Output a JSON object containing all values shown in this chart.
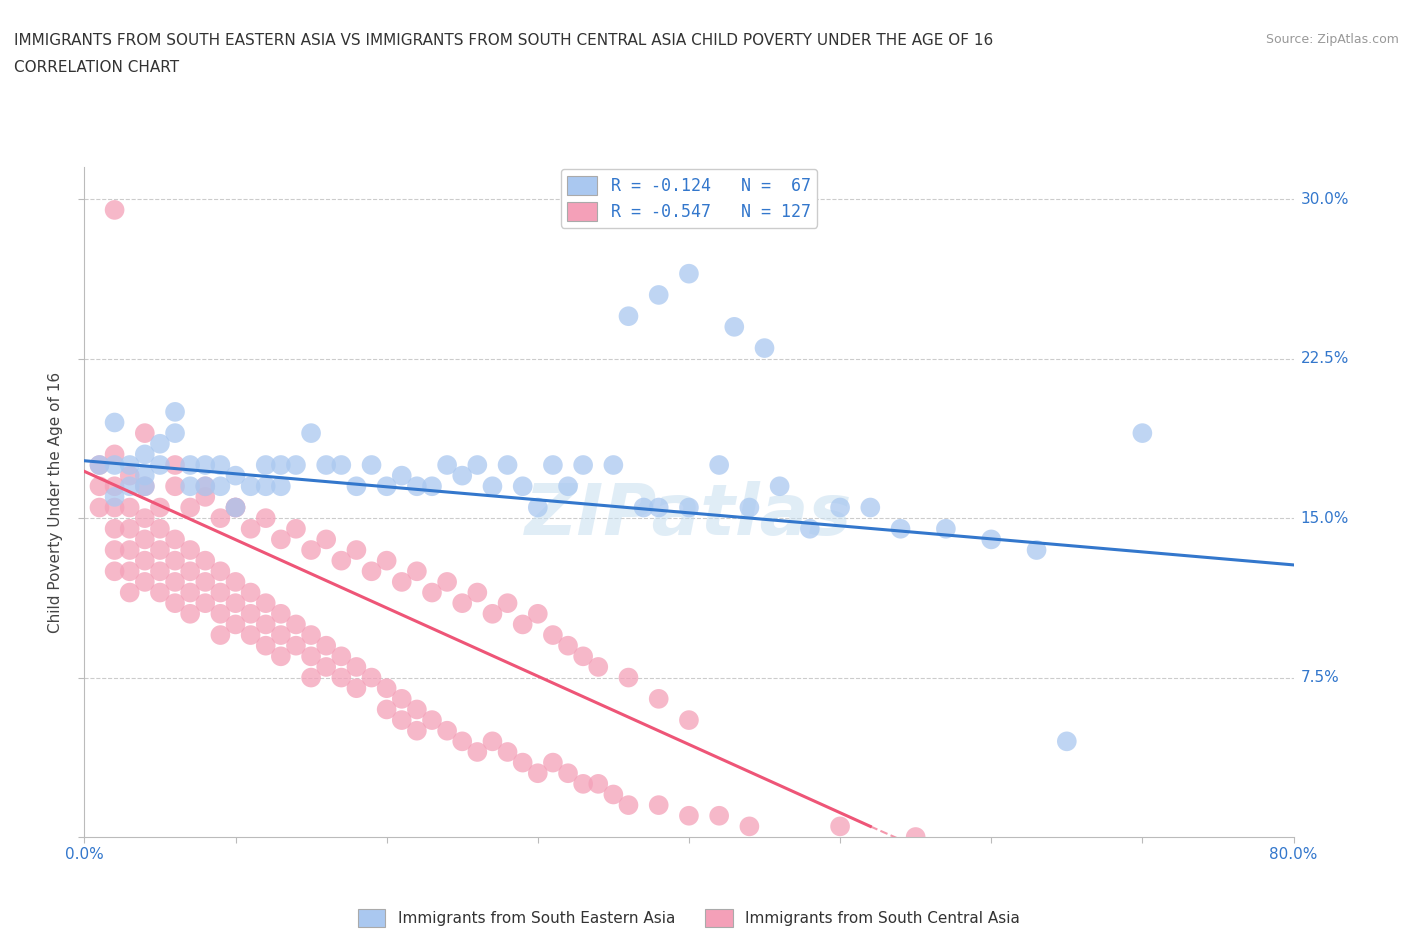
{
  "title_line1": "IMMIGRANTS FROM SOUTH EASTERN ASIA VS IMMIGRANTS FROM SOUTH CENTRAL ASIA CHILD POVERTY UNDER THE AGE OF 16",
  "title_line2": "CORRELATION CHART",
  "source_text": "Source: ZipAtlas.com",
  "ylabel": "Child Poverty Under the Age of 16",
  "xmin": 0.0,
  "xmax": 0.8,
  "ymin": 0.0,
  "ymax": 0.315,
  "yticks": [
    0.0,
    0.075,
    0.15,
    0.225,
    0.3
  ],
  "ytick_labels": [
    "",
    "7.5%",
    "15.0%",
    "22.5%",
    "30.0%"
  ],
  "r_blue": -0.124,
  "n_blue": 67,
  "r_pink": -0.547,
  "n_pink": 127,
  "blue_color": "#aac8f0",
  "pink_color": "#f4a0b8",
  "blue_line_color": "#3377cc",
  "pink_line_color": "#ee5577",
  "watermark": "ZIPatlas",
  "legend_label_blue": "Immigrants from South Eastern Asia",
  "legend_label_pink": "Immigrants from South Central Asia",
  "blue_scatter_x": [
    0.01,
    0.02,
    0.02,
    0.02,
    0.03,
    0.03,
    0.04,
    0.04,
    0.04,
    0.05,
    0.05,
    0.06,
    0.06,
    0.07,
    0.07,
    0.08,
    0.08,
    0.09,
    0.09,
    0.1,
    0.1,
    0.11,
    0.12,
    0.12,
    0.13,
    0.13,
    0.14,
    0.15,
    0.16,
    0.17,
    0.18,
    0.19,
    0.2,
    0.21,
    0.22,
    0.23,
    0.24,
    0.25,
    0.26,
    0.27,
    0.28,
    0.29,
    0.3,
    0.31,
    0.32,
    0.33,
    0.35,
    0.37,
    0.38,
    0.4,
    0.42,
    0.44,
    0.46,
    0.48,
    0.5,
    0.52,
    0.54,
    0.57,
    0.6,
    0.63,
    0.36,
    0.38,
    0.4,
    0.43,
    0.45,
    0.7,
    0.65
  ],
  "blue_scatter_y": [
    0.175,
    0.195,
    0.175,
    0.16,
    0.175,
    0.165,
    0.18,
    0.17,
    0.165,
    0.185,
    0.175,
    0.2,
    0.19,
    0.175,
    0.165,
    0.175,
    0.165,
    0.175,
    0.165,
    0.17,
    0.155,
    0.165,
    0.175,
    0.165,
    0.175,
    0.165,
    0.175,
    0.19,
    0.175,
    0.175,
    0.165,
    0.175,
    0.165,
    0.17,
    0.165,
    0.165,
    0.175,
    0.17,
    0.175,
    0.165,
    0.175,
    0.165,
    0.155,
    0.175,
    0.165,
    0.175,
    0.175,
    0.155,
    0.155,
    0.155,
    0.175,
    0.155,
    0.165,
    0.145,
    0.155,
    0.155,
    0.145,
    0.145,
    0.14,
    0.135,
    0.245,
    0.255,
    0.265,
    0.24,
    0.23,
    0.19,
    0.045
  ],
  "pink_scatter_x": [
    0.01,
    0.01,
    0.01,
    0.02,
    0.02,
    0.02,
    0.02,
    0.02,
    0.03,
    0.03,
    0.03,
    0.03,
    0.03,
    0.04,
    0.04,
    0.04,
    0.04,
    0.05,
    0.05,
    0.05,
    0.05,
    0.06,
    0.06,
    0.06,
    0.06,
    0.07,
    0.07,
    0.07,
    0.07,
    0.08,
    0.08,
    0.08,
    0.09,
    0.09,
    0.09,
    0.09,
    0.1,
    0.1,
    0.1,
    0.11,
    0.11,
    0.11,
    0.12,
    0.12,
    0.12,
    0.13,
    0.13,
    0.13,
    0.14,
    0.14,
    0.15,
    0.15,
    0.15,
    0.16,
    0.16,
    0.17,
    0.17,
    0.18,
    0.18,
    0.19,
    0.2,
    0.2,
    0.21,
    0.21,
    0.22,
    0.22,
    0.23,
    0.24,
    0.25,
    0.26,
    0.27,
    0.28,
    0.29,
    0.3,
    0.31,
    0.32,
    0.33,
    0.34,
    0.35,
    0.36,
    0.38,
    0.4,
    0.42,
    0.44,
    0.5,
    0.55,
    0.02,
    0.03,
    0.04,
    0.05,
    0.06,
    0.07,
    0.08,
    0.09,
    0.1,
    0.11,
    0.12,
    0.13,
    0.14,
    0.15,
    0.16,
    0.17,
    0.18,
    0.19,
    0.2,
    0.21,
    0.22,
    0.23,
    0.24,
    0.25,
    0.26,
    0.27,
    0.28,
    0.29,
    0.3,
    0.31,
    0.32,
    0.33,
    0.34,
    0.36,
    0.38,
    0.4,
    0.02,
    0.04,
    0.06,
    0.08,
    0.1
  ],
  "pink_scatter_y": [
    0.175,
    0.165,
    0.155,
    0.165,
    0.155,
    0.145,
    0.135,
    0.125,
    0.155,
    0.145,
    0.135,
    0.125,
    0.115,
    0.15,
    0.14,
    0.13,
    0.12,
    0.145,
    0.135,
    0.125,
    0.115,
    0.14,
    0.13,
    0.12,
    0.11,
    0.135,
    0.125,
    0.115,
    0.105,
    0.13,
    0.12,
    0.11,
    0.125,
    0.115,
    0.105,
    0.095,
    0.12,
    0.11,
    0.1,
    0.115,
    0.105,
    0.095,
    0.11,
    0.1,
    0.09,
    0.105,
    0.095,
    0.085,
    0.1,
    0.09,
    0.095,
    0.085,
    0.075,
    0.09,
    0.08,
    0.085,
    0.075,
    0.08,
    0.07,
    0.075,
    0.07,
    0.06,
    0.065,
    0.055,
    0.06,
    0.05,
    0.055,
    0.05,
    0.045,
    0.04,
    0.045,
    0.04,
    0.035,
    0.03,
    0.035,
    0.03,
    0.025,
    0.025,
    0.02,
    0.015,
    0.015,
    0.01,
    0.01,
    0.005,
    0.005,
    0.0,
    0.18,
    0.17,
    0.165,
    0.155,
    0.165,
    0.155,
    0.16,
    0.15,
    0.155,
    0.145,
    0.15,
    0.14,
    0.145,
    0.135,
    0.14,
    0.13,
    0.135,
    0.125,
    0.13,
    0.12,
    0.125,
    0.115,
    0.12,
    0.11,
    0.115,
    0.105,
    0.11,
    0.1,
    0.105,
    0.095,
    0.09,
    0.085,
    0.08,
    0.075,
    0.065,
    0.055,
    0.295,
    0.19,
    0.175,
    0.165,
    0.155
  ]
}
